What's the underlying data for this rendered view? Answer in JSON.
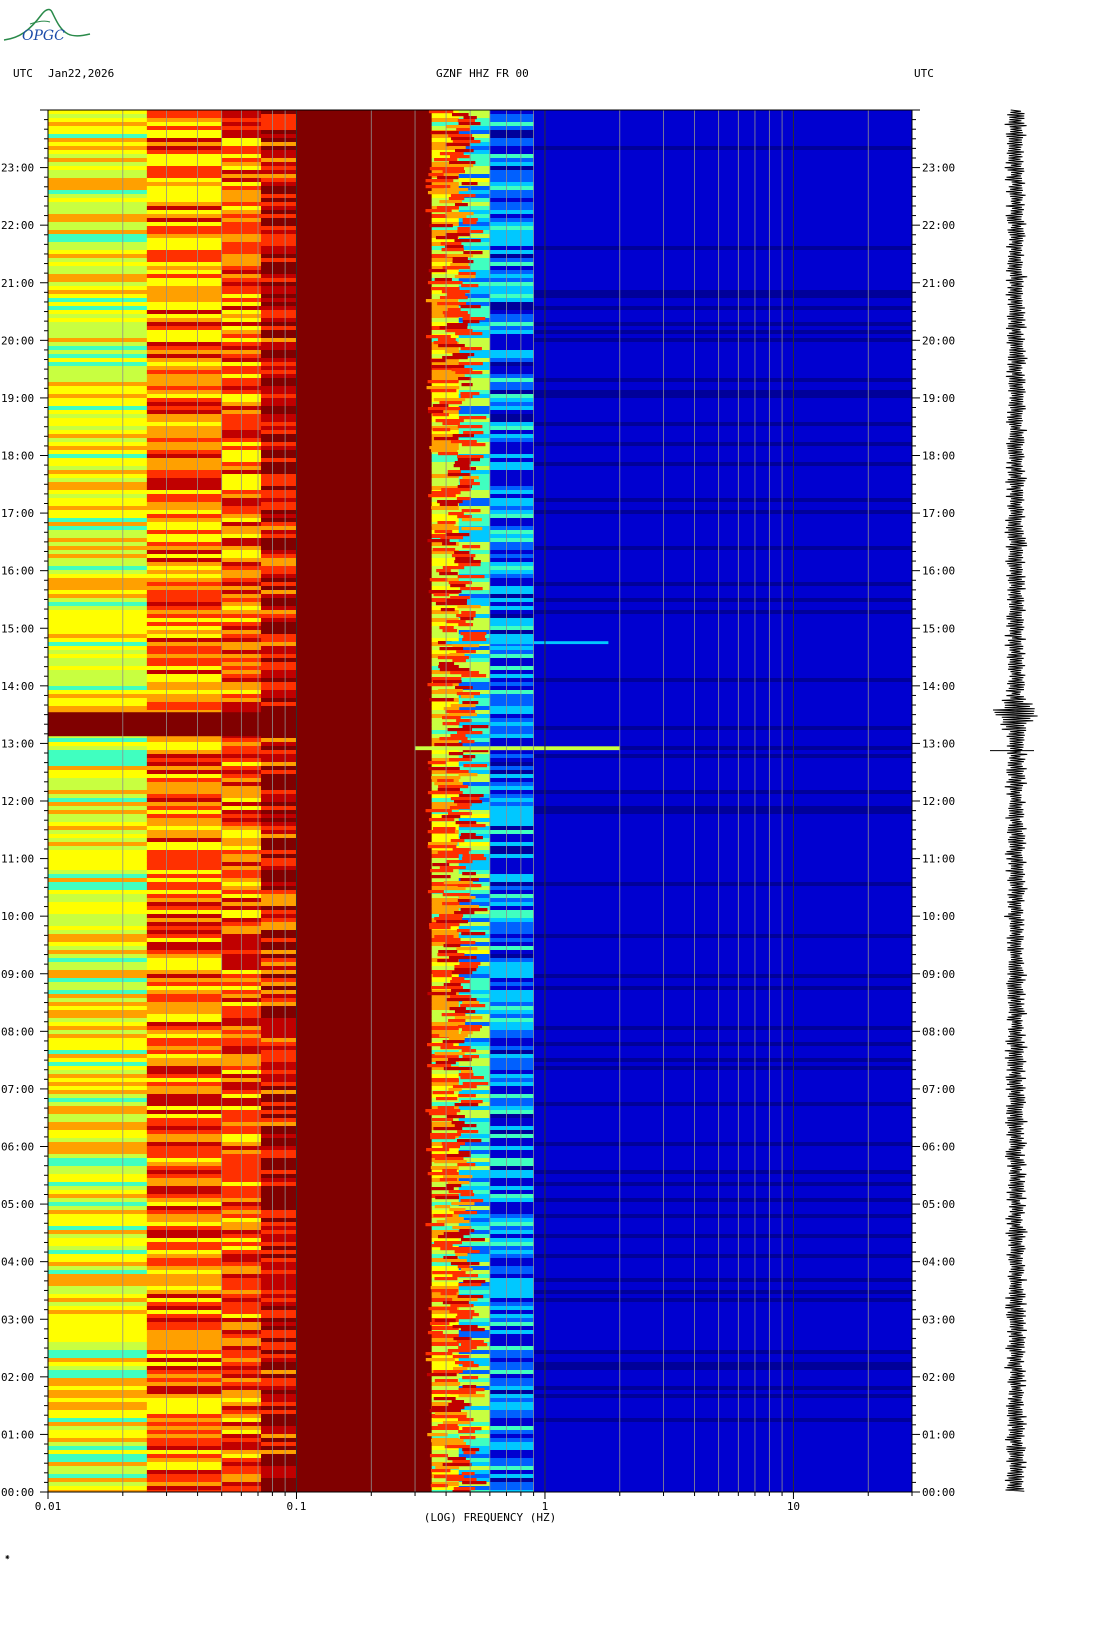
{
  "logo": {
    "text": "OPGC",
    "color": "#2a8a4a",
    "text_color": "#1a4aa8"
  },
  "header": {
    "left_tz": "UTC",
    "date": "Jan22,2026",
    "station": "GZNF HHZ FR 00",
    "right_tz": "UTC"
  },
  "chart_data": {
    "type": "heatmap",
    "title": "GZNF HHZ FR 00",
    "date": "Jan22,2026",
    "xlabel": "(LOG) FREQUENCY (HZ)",
    "x_scale": "log",
    "xlim": [
      0.01,
      30
    ],
    "x_tick_labels": [
      {
        "value": 0.01,
        "label": "0.01"
      },
      {
        "value": 0.1,
        "label": "0.1"
      },
      {
        "value": 1,
        "label": "1"
      },
      {
        "value": 10,
        "label": "10"
      }
    ],
    "ylabel": "UTC",
    "ylim_hours": [
      0,
      24
    ],
    "y_tick_labels": [
      "00:00",
      "01:00",
      "02:00",
      "03:00",
      "04:00",
      "05:00",
      "06:00",
      "07:00",
      "08:00",
      "09:00",
      "10:00",
      "11:00",
      "12:00",
      "13:00",
      "14:00",
      "15:00",
      "16:00",
      "17:00",
      "18:00",
      "19:00",
      "20:00",
      "21:00",
      "22:00",
      "23:00"
    ],
    "colormap": [
      "#00009a",
      "#0000d0",
      "#0060ff",
      "#00c8ff",
      "#40ffc0",
      "#c8ff40",
      "#ffff00",
      "#ffa000",
      "#ff3000",
      "#c00000",
      "#800000"
    ],
    "spectral_bands": [
      {
        "f_min": 0.01,
        "f_max": 0.025,
        "level": 0.56
      },
      {
        "f_min": 0.025,
        "f_max": 0.05,
        "level": 0.73
      },
      {
        "f_min": 0.05,
        "f_max": 0.072,
        "level": 0.77
      },
      {
        "f_min": 0.072,
        "f_max": 0.1,
        "level": 0.9
      },
      {
        "f_min": 0.1,
        "f_max": 0.35,
        "level": 1.0
      },
      {
        "f_min": 0.35,
        "f_max": 0.45,
        "level": 0.6
      },
      {
        "f_min": 0.45,
        "f_max": 0.6,
        "level": 0.38
      },
      {
        "f_min": 0.6,
        "f_max": 0.9,
        "level": 0.2
      },
      {
        "f_min": 0.9,
        "f_max": 30,
        "level": 0.06
      }
    ],
    "events": [
      {
        "time": "13:20",
        "f_min": 0.01,
        "f_max": 0.1,
        "level": 1.0,
        "duration_min": 25
      },
      {
        "time": "12:55",
        "f_min": 0.3,
        "f_max": 2.0,
        "level": 0.45,
        "duration_min": 4
      },
      {
        "time": "14:45",
        "f_min": 0.4,
        "f_max": 1.8,
        "level": 0.3,
        "duration_min": 3
      }
    ],
    "seismogram": {
      "event_time": "13:30",
      "color": "#000000"
    }
  }
}
